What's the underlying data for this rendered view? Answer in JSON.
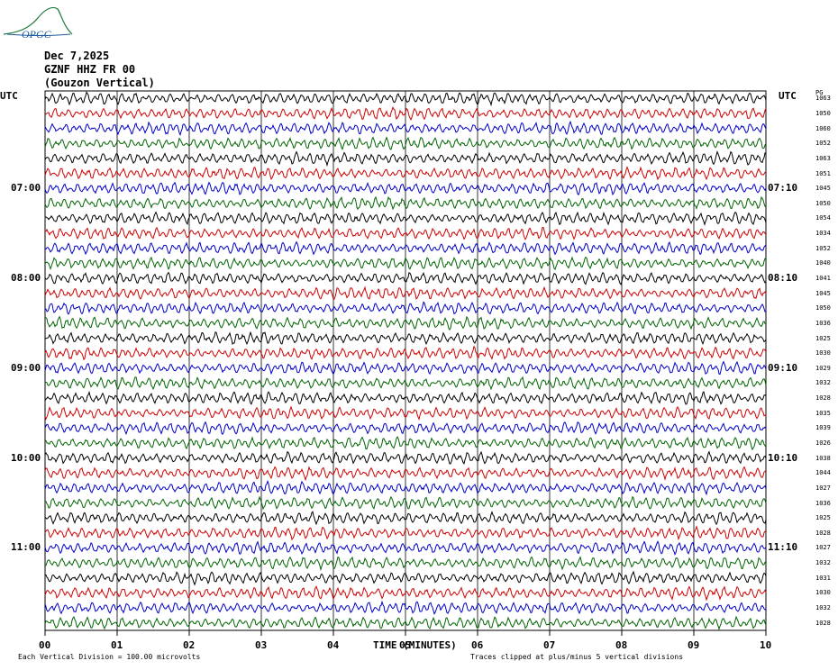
{
  "logo": {
    "text": "OPGC",
    "color": "#1a7a3a"
  },
  "header": {
    "date": "Dec 7,2025",
    "station": "GZNF HHZ FR 00",
    "location": "(Gouzon Vertical)"
  },
  "axis_labels": {
    "utc_left": "UTC",
    "utc_right": "UTC",
    "pg_header": "PG"
  },
  "chart_data": {
    "type": "line",
    "title": "",
    "xlabel": "TIME (MINUTES)",
    "xlim": [
      0,
      10
    ],
    "x_ticks": [
      "00",
      "01",
      "02",
      "03",
      "04",
      "05",
      "06",
      "07",
      "08",
      "09",
      "10"
    ],
    "trace_count": 36,
    "trace_colors": [
      "#000000",
      "#d00000",
      "#0000c8",
      "#006400"
    ],
    "left_time_labels": [
      {
        "trace": 6,
        "label": "07:00"
      },
      {
        "trace": 12,
        "label": "08:00"
      },
      {
        "trace": 18,
        "label": "09:00"
      },
      {
        "trace": 24,
        "label": "10:00"
      },
      {
        "trace": 30,
        "label": "11:00"
      }
    ],
    "right_time_labels": [
      {
        "trace": 6,
        "label": "07:10"
      },
      {
        "trace": 12,
        "label": "08:10"
      },
      {
        "trace": 18,
        "label": "09:10"
      },
      {
        "trace": 24,
        "label": "10:10"
      },
      {
        "trace": 30,
        "label": "11:10"
      }
    ],
    "pg_values": [
      "1063",
      "1050",
      "1060",
      "1052",
      "1063",
      "1051",
      "1045",
      "1050",
      "1054",
      "1034",
      "1052",
      "1040",
      "1041",
      "1045",
      "1050",
      "1036",
      "1025",
      "1030",
      "1029",
      "1032",
      "1028",
      "1035",
      "1039",
      "1026",
      "1038",
      "1044",
      "1027",
      "1036",
      "1025",
      "1028",
      "1027",
      "1032",
      "1031",
      "1030",
      "1032",
      "1028"
    ]
  },
  "footer": {
    "scale_note": "Each Vertical Division =  100.00 microvolts",
    "clip_note": "Traces clipped at plus/minus 5 vertical divisions"
  }
}
